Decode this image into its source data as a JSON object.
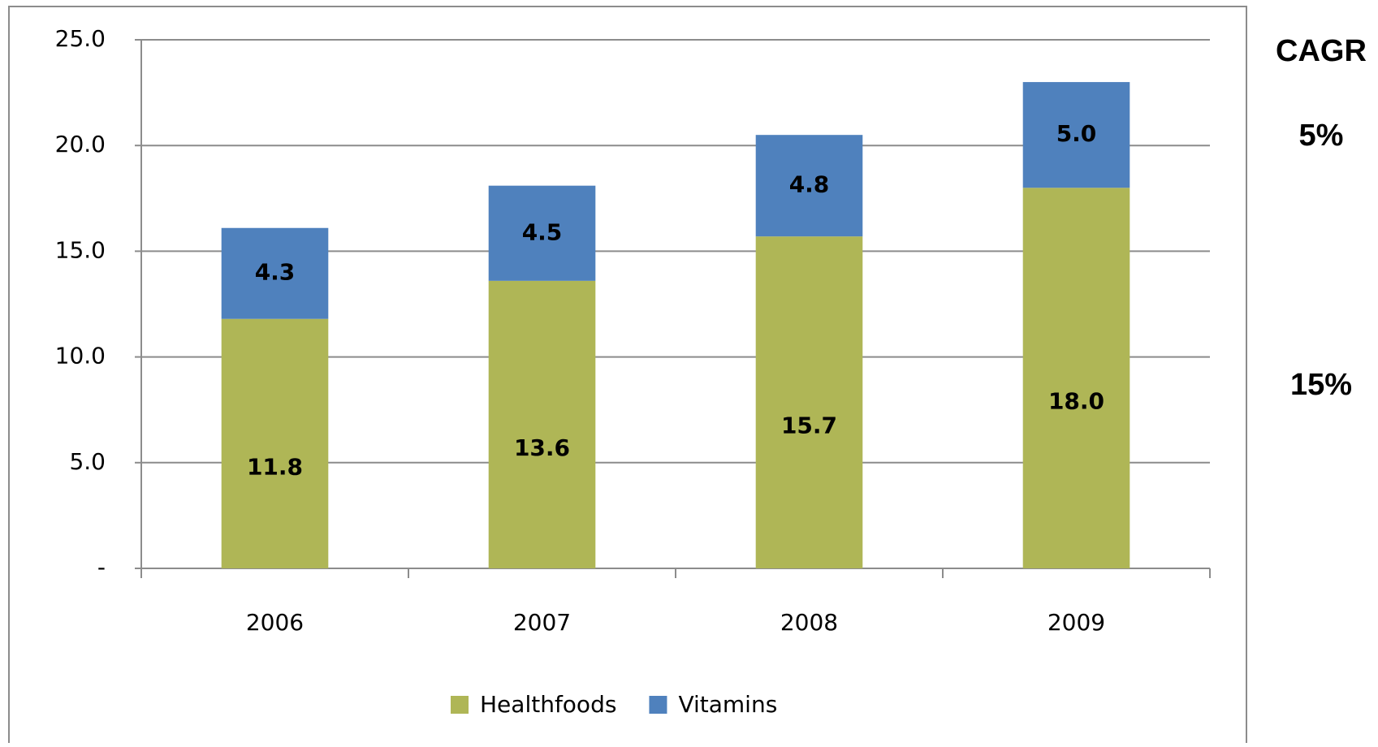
{
  "chart_data": {
    "type": "bar",
    "stacked": true,
    "categories": [
      "2006",
      "2007",
      "2008",
      "2009"
    ],
    "series": [
      {
        "name": "Healthfoods",
        "color": "#afb656",
        "values": [
          11.8,
          13.6,
          15.7,
          18
        ],
        "value_labels": [
          "11.8",
          "13.6",
          "15.7",
          "18.0"
        ]
      },
      {
        "name": "Vitamins",
        "color": "#4f81bd",
        "values": [
          4.3,
          4.5,
          4.8,
          5
        ],
        "value_labels": [
          "4.3",
          "4.5",
          "4.8",
          "5.0"
        ]
      }
    ],
    "ylim": [
      0,
      25
    ],
    "yticks": [
      {
        "value": 0,
        "label": "-"
      },
      {
        "value": 5,
        "label": "5.0"
      },
      {
        "value": 10,
        "label": "10.0"
      },
      {
        "value": 15,
        "label": "15.0"
      },
      {
        "value": 20,
        "label": "20.0"
      },
      {
        "value": 25,
        "label": "25.0"
      }
    ],
    "grid": true,
    "legend": "bottom",
    "annotations": [
      "CAGR",
      "5%",
      "15%"
    ]
  }
}
